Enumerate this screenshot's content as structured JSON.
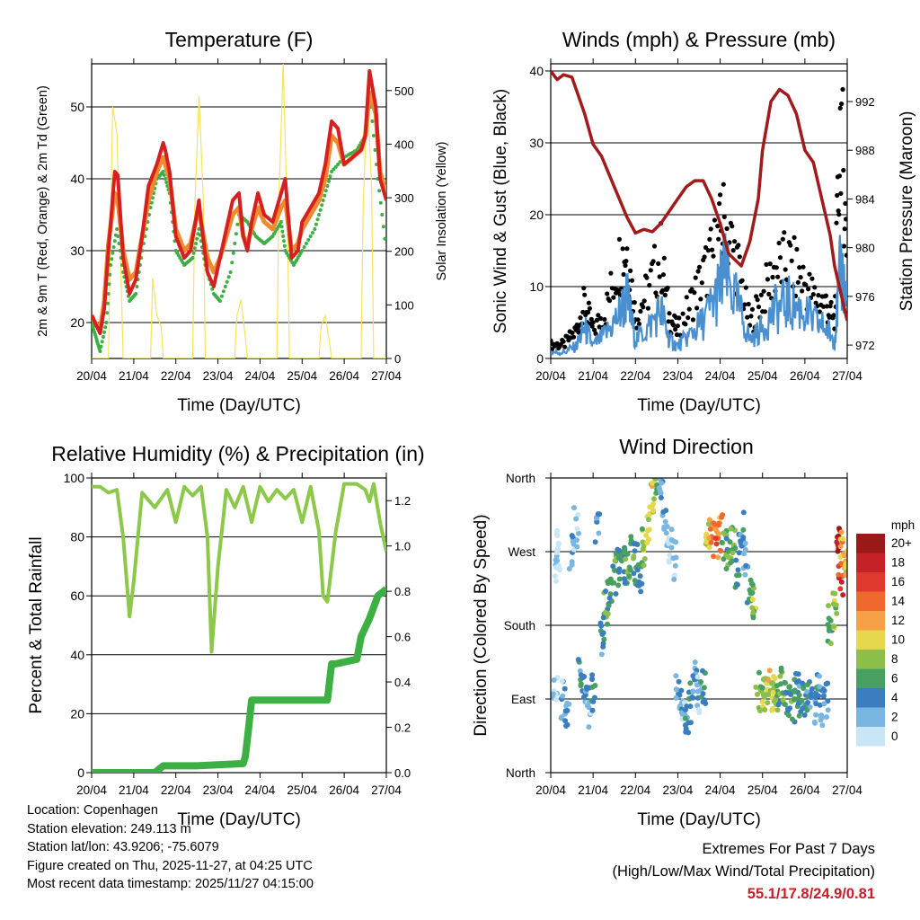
{
  "colors": {
    "temp_2m": "#d62020",
    "temp_9m": "#f08a30",
    "dewpoint": "#3cb043",
    "solar": "#f7e35a",
    "wind": "#4a90d0",
    "gust": "#000000",
    "pressure": "#a01c1c",
    "rh": "#8cc84a",
    "precip": "#3cb043"
  },
  "time_ticks": [
    "20/04",
    "21/04",
    "22/04",
    "23/04",
    "24/04",
    "25/04",
    "26/04",
    "27/04"
  ],
  "x_label": "Time (Day/UTC)",
  "chart_data": [
    {
      "type": "line",
      "title": "Temperature (F)",
      "xlabel": "Time (Day/UTC)",
      "ylabel": "2m & 9m T (Red, Orange) & 2m Td (Green)",
      "ylabel_right": "Solar Insolation (Yellow)",
      "xlim": [
        0,
        7
      ],
      "ylim": [
        15,
        56
      ],
      "ylim_right": [
        0,
        550
      ],
      "yticks": [
        20,
        30,
        40,
        50
      ],
      "yticks_right": [
        0,
        100,
        200,
        300,
        400,
        500
      ],
      "series": [
        {
          "name": "2m T",
          "x": [
            0,
            0.08,
            0.2,
            0.3,
            0.4,
            0.55,
            0.62,
            0.75,
            0.9,
            1.05,
            1.2,
            1.35,
            1.55,
            1.7,
            1.75,
            1.85,
            2.0,
            2.2,
            2.35,
            2.55,
            2.6,
            2.75,
            2.9,
            3.05,
            3.2,
            3.35,
            3.5,
            3.6,
            3.7,
            3.8,
            3.95,
            4.1,
            4.3,
            4.5,
            4.6,
            4.75,
            4.9,
            5.0,
            5.2,
            5.4,
            5.55,
            5.7,
            5.85,
            6.0,
            6.2,
            6.4,
            6.5,
            6.6,
            6.75,
            6.85,
            7.0
          ],
          "y": [
            21,
            20,
            18.5,
            22,
            30,
            41,
            40.5,
            29,
            24,
            26,
            32,
            39,
            42,
            45,
            44,
            41,
            32,
            29,
            30,
            37,
            34,
            27,
            25,
            29,
            33,
            37,
            38,
            32,
            30,
            34,
            38,
            35,
            34,
            38,
            40,
            29,
            30,
            34,
            36,
            38,
            42,
            48,
            47,
            42,
            43,
            44,
            46,
            55,
            50,
            40,
            37
          ]
        },
        {
          "name": "9m T",
          "x": [
            0,
            0.08,
            0.2,
            0.3,
            0.4,
            0.55,
            0.62,
            0.75,
            0.9,
            1.05,
            1.2,
            1.35,
            1.55,
            1.7,
            1.75,
            1.85,
            2.0,
            2.2,
            2.35,
            2.55,
            2.6,
            2.75,
            2.9,
            3.05,
            3.2,
            3.35,
            3.5,
            3.6,
            3.7,
            3.8,
            3.95,
            4.1,
            4.3,
            4.5,
            4.6,
            4.75,
            4.9,
            5.0,
            5.2,
            5.4,
            5.55,
            5.7,
            5.85,
            6.0,
            6.2,
            6.4,
            6.5,
            6.6,
            6.75,
            6.85,
            7.0
          ],
          "y": [
            21,
            20,
            19,
            23,
            31,
            38,
            37,
            30,
            26,
            27,
            32,
            37,
            41,
            43,
            42,
            40,
            33,
            30,
            31,
            36,
            34,
            29,
            27,
            29,
            32,
            35,
            36,
            32,
            31,
            33,
            36,
            34,
            33,
            36,
            37,
            30,
            31,
            33,
            35,
            37,
            40,
            46,
            45,
            42,
            43,
            44,
            46,
            52,
            49,
            41,
            38
          ]
        },
        {
          "name": "2m Td",
          "x": [
            0,
            0.1,
            0.2,
            0.35,
            0.45,
            0.6,
            0.75,
            0.9,
            1.05,
            1.2,
            1.4,
            1.55,
            1.7,
            1.85,
            2.0,
            2.2,
            2.4,
            2.55,
            2.7,
            2.9,
            3.05,
            3.3,
            3.5,
            3.7,
            3.9,
            4.1,
            4.3,
            4.5,
            4.6,
            4.8,
            5.0,
            5.3,
            5.5,
            5.7,
            6.0,
            6.3,
            6.5,
            6.6,
            6.8,
            7.0
          ],
          "y": [
            20,
            18,
            16,
            20,
            28,
            33,
            27,
            23,
            24,
            30,
            36,
            40,
            41,
            38,
            30,
            28,
            29,
            33,
            28,
            24,
            23,
            27,
            35,
            34,
            32,
            31,
            32,
            34,
            30,
            28,
            30,
            33,
            37,
            41,
            43,
            44,
            46,
            52,
            40,
            30
          ]
        },
        {
          "name": "Solar Insolation",
          "axis": "right",
          "x": [
            0,
            0.4,
            0.45,
            0.5,
            0.6,
            0.7,
            0.75,
            1.4,
            1.45,
            1.55,
            1.65,
            1.7,
            2.4,
            2.45,
            2.55,
            2.65,
            2.7,
            3.4,
            3.45,
            3.55,
            3.65,
            3.7,
            4.4,
            4.45,
            4.55,
            4.65,
            4.7,
            5.4,
            5.45,
            5.55,
            5.65,
            5.7,
            6.4,
            6.45,
            6.55,
            6.65,
            6.7,
            7.0
          ],
          "y": [
            0,
            0,
            250,
            470,
            420,
            150,
            0,
            0,
            150,
            80,
            60,
            0,
            0,
            280,
            490,
            300,
            0,
            0,
            80,
            110,
            40,
            0,
            0,
            300,
            550,
            250,
            0,
            0,
            60,
            80,
            30,
            0,
            0,
            280,
            500,
            320,
            0,
            0
          ]
        }
      ]
    },
    {
      "type": "line",
      "title": "Winds (mph) & Pressure (mb)",
      "xlabel": "Time (Day/UTC)",
      "ylabel": "Sonic Wind & Gust (Blue, Black)",
      "ylabel_right": "Station Pressure (Maroon)",
      "xlim": [
        0,
        7
      ],
      "ylim": [
        0,
        41
      ],
      "ylim_right": [
        970.9,
        995.1
      ],
      "yticks": [
        0,
        10,
        20,
        30,
        40
      ],
      "yticks_right": [
        972,
        976,
        980,
        984,
        988,
        992
      ],
      "series": [
        {
          "name": "Sonic Wind",
          "x": [
            0,
            0.3,
            0.6,
            0.8,
            1.0,
            1.3,
            1.6,
            1.8,
            2.0,
            2.3,
            2.6,
            2.8,
            3.0,
            3.3,
            3.6,
            3.9,
            4.1,
            4.4,
            4.7,
            5.0,
            5.3,
            5.6,
            5.9,
            6.2,
            6.5,
            6.7,
            6.85,
            7.0
          ],
          "y": [
            1,
            1,
            2,
            5,
            2,
            4,
            7,
            10,
            3,
            5,
            8,
            3,
            2,
            4,
            6,
            10,
            14,
            9,
            3,
            5,
            8,
            9,
            8,
            6,
            5,
            3,
            15,
            9
          ]
        },
        {
          "name": "Gust",
          "x": [
            0,
            0.3,
            0.6,
            0.8,
            1.0,
            1.3,
            1.6,
            1.8,
            2.0,
            2.3,
            2.6,
            2.8,
            3.0,
            3.3,
            3.6,
            3.9,
            4.1,
            4.4,
            4.7,
            5.0,
            5.3,
            5.6,
            5.9,
            6.2,
            6.5,
            6.7,
            6.85,
            7.0
          ],
          "y": [
            2,
            2,
            4,
            8,
            4,
            7,
            14,
            16,
            6,
            10,
            15,
            6,
            4,
            8,
            12,
            16,
            20,
            14,
            5,
            9,
            13,
            14,
            12,
            9,
            8,
            5,
            37,
            14
          ]
        },
        {
          "name": "Station Pressure",
          "axis": "right",
          "x": [
            0,
            0.15,
            0.3,
            0.5,
            0.8,
            1.0,
            1.2,
            1.5,
            1.8,
            2.0,
            2.2,
            2.4,
            2.6,
            2.8,
            3.0,
            3.2,
            3.4,
            3.6,
            3.8,
            4.0,
            4.2,
            4.5,
            4.7,
            4.9,
            5.0,
            5.2,
            5.4,
            5.6,
            5.8,
            6.0,
            6.2,
            6.4,
            6.6,
            6.7,
            6.8,
            6.9,
            7.0
          ],
          "y": [
            994.5,
            993.8,
            994.2,
            994,
            991,
            988.5,
            987.5,
            985,
            982.5,
            981.2,
            981.5,
            981.3,
            982,
            983,
            984,
            985,
            985.5,
            985.5,
            984,
            982,
            979.5,
            978.5,
            980.5,
            984,
            988,
            992,
            993,
            992.5,
            991,
            988,
            987,
            984,
            981,
            978.5,
            977,
            975.5,
            974
          ]
        }
      ]
    },
    {
      "type": "line",
      "title": "Relative Humidity (%) & Precipitation (in)",
      "xlabel": "Time (Day/UTC)",
      "ylabel": "Percent & Total Rainfall",
      "xlim": [
        0,
        7
      ],
      "ylim": [
        0,
        100
      ],
      "ylim_right": [
        0,
        1.3
      ],
      "yticks": [
        0,
        20,
        40,
        60,
        80,
        100
      ],
      "yticks_right": [
        0.0,
        0.2,
        0.4,
        0.6,
        0.8,
        1.0,
        1.2
      ],
      "series": [
        {
          "name": "Relative Humidity",
          "x": [
            0,
            0.2,
            0.4,
            0.6,
            0.75,
            0.9,
            1.0,
            1.2,
            1.5,
            1.8,
            2.0,
            2.2,
            2.4,
            2.6,
            2.75,
            2.85,
            3.0,
            3.2,
            3.4,
            3.6,
            3.8,
            4.0,
            4.2,
            4.4,
            4.6,
            4.8,
            5.0,
            5.2,
            5.4,
            5.5,
            5.6,
            5.8,
            6.0,
            6.3,
            6.5,
            6.6,
            6.7,
            6.85,
            7.0
          ],
          "y": [
            97,
            97,
            95,
            96,
            80,
            53,
            65,
            95,
            90,
            96,
            85,
            97,
            94,
            97,
            80,
            41,
            70,
            96,
            90,
            97,
            85,
            97,
            92,
            96,
            93,
            96,
            85,
            97,
            82,
            60,
            58,
            82,
            98,
            98,
            96,
            92,
            98,
            85,
            75
          ]
        },
        {
          "name": "Total Precipitation",
          "axis": "right",
          "x": [
            0,
            1.5,
            1.7,
            2.5,
            3.6,
            3.65,
            3.7,
            3.8,
            4.0,
            5.6,
            5.7,
            5.8,
            6.3,
            6.4,
            6.6,
            6.8,
            7.0
          ],
          "y": [
            0,
            0,
            0.03,
            0.03,
            0.04,
            0.07,
            0.15,
            0.32,
            0.32,
            0.32,
            0.48,
            0.48,
            0.5,
            0.6,
            0.68,
            0.78,
            0.81
          ]
        }
      ]
    },
    {
      "type": "scatter",
      "title": "Wind Direction",
      "xlabel": "Time (Day/UTC)",
      "ylabel": "Direction (Colored By Speed)",
      "xlim": [
        0,
        7
      ],
      "ylim": [
        0,
        360
      ],
      "yticks": [
        "North",
        "East",
        "South",
        "West",
        "North"
      ],
      "legend": {
        "title": "mph",
        "labels": [
          "20+",
          "18",
          "16",
          "14",
          "12",
          "10",
          "8",
          "6",
          "4",
          "2",
          "0"
        ],
        "colors": [
          "#9a1a1a",
          "#c42128",
          "#e03a2e",
          "#f0682e",
          "#f8a048",
          "#e6d84c",
          "#8cc04a",
          "#48a060",
          "#3a7ec0",
          "#7ab6e2",
          "#c8e6f6"
        ]
      },
      "series": [
        {
          "name": "Wind Direction",
          "x": [
            0.1,
            0.15,
            0.2,
            0.3,
            0.4,
            0.5,
            0.6,
            0.7,
            0.8,
            0.9,
            1.0,
            1.1,
            1.2,
            1.3,
            1.4,
            1.5,
            1.6,
            1.7,
            1.8,
            1.9,
            2.0,
            2.1,
            2.2,
            2.3,
            2.4,
            2.5,
            2.6,
            2.7,
            2.8,
            2.9,
            3.0,
            3.1,
            3.2,
            3.3,
            3.4,
            3.5,
            3.6,
            3.7,
            3.8,
            3.9,
            4.0,
            4.1,
            4.2,
            4.3,
            4.4,
            4.5,
            4.6,
            4.7,
            4.8,
            4.9,
            5.0,
            5.1,
            5.2,
            5.3,
            5.4,
            5.5,
            5.6,
            5.7,
            5.8,
            5.9,
            6.0,
            6.1,
            6.2,
            6.3,
            6.4,
            6.5,
            6.6,
            6.7,
            6.8,
            6.85,
            6.9,
            6.95
          ],
          "y": [
            100,
            250,
            280,
            90,
            60,
            270,
            300,
            120,
            100,
            80,
            95,
            300,
            160,
            200,
            220,
            240,
            250,
            260,
            245,
            270,
            255,
            240,
            275,
            300,
            330,
            350,
            340,
            300,
            280,
            260,
            100,
            90,
            70,
            85,
            110,
            95,
            100,
            290,
            285,
            280,
            290,
            280,
            270,
            275,
            250,
            300,
            260,
            220,
            210,
            100,
            95,
            90,
            100,
            95,
            100,
            105,
            95,
            85,
            100,
            90,
            95,
            90,
            85,
            100,
            80,
            90,
            180,
            200,
            290,
            240,
            270,
            265
          ],
          "speed": [
            1,
            1,
            1,
            2,
            3,
            2,
            1,
            4,
            3,
            2,
            5,
            2,
            4,
            6,
            5,
            6,
            5,
            4,
            6,
            7,
            5,
            4,
            8,
            9,
            10,
            7,
            3,
            2,
            1,
            2,
            3,
            2,
            4,
            5,
            3,
            2,
            6,
            9,
            13,
            14,
            12,
            8,
            6,
            7,
            5,
            4,
            3,
            6,
            8,
            7,
            8,
            9,
            10,
            8,
            6,
            7,
            5,
            6,
            5,
            4,
            5,
            4,
            3,
            4,
            2,
            3,
            6,
            8,
            20,
            16,
            12,
            10
          ]
        }
      ]
    }
  ],
  "info": {
    "location": "Location: Copenhagen",
    "elevation": "Station elevation: 249.113 m",
    "latlon": "Station lat/lon: 43.9206; -75.6079",
    "created": "Figure created on Thu, 2025-11-27, at 04:25 UTC",
    "recent": "Most recent data timestamp: 2025/11/27 04:15:00"
  },
  "extremes": {
    "title": "Extremes For Past 7 Days",
    "subtitle": "(High/Low/Max Wind/Total Precipitation)",
    "values": "55.1/17.8/24.9/0.81"
  }
}
